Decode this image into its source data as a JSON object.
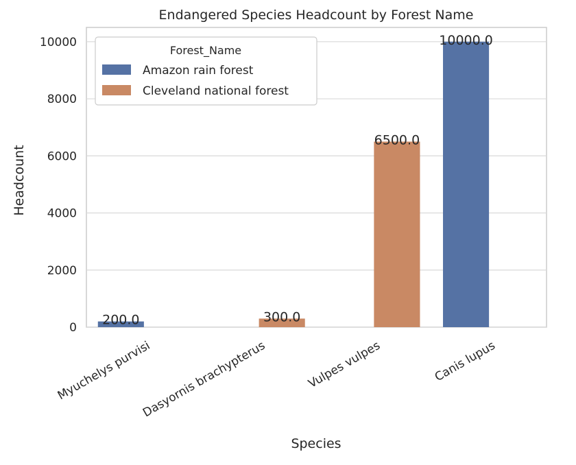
{
  "chart_data": {
    "type": "bar",
    "title": "Endangered Species Headcount by Forest Name",
    "xlabel": "Species",
    "ylabel": "Headcount",
    "ylim": [
      0,
      10500
    ],
    "yticks": [
      0,
      2000,
      4000,
      6000,
      8000,
      10000
    ],
    "grid": true,
    "categories": [
      "Myuchelys purvisi",
      "Dasyornis brachypterus",
      "Vulpes vulpes",
      "Canis lupus"
    ],
    "legend": {
      "title": "Forest_Name",
      "placement": "top-left"
    },
    "series": [
      {
        "name": "Amazon rain forest",
        "color": "#5572a4",
        "values": [
          200,
          null,
          null,
          10000
        ],
        "labels": [
          "200.0",
          null,
          null,
          "10000.0"
        ]
      },
      {
        "name": "Cleveland national forest",
        "color": "#c98964",
        "values": [
          null,
          300,
          6500,
          null
        ],
        "labels": [
          null,
          "300.0",
          "6500.0",
          null
        ]
      }
    ]
  }
}
